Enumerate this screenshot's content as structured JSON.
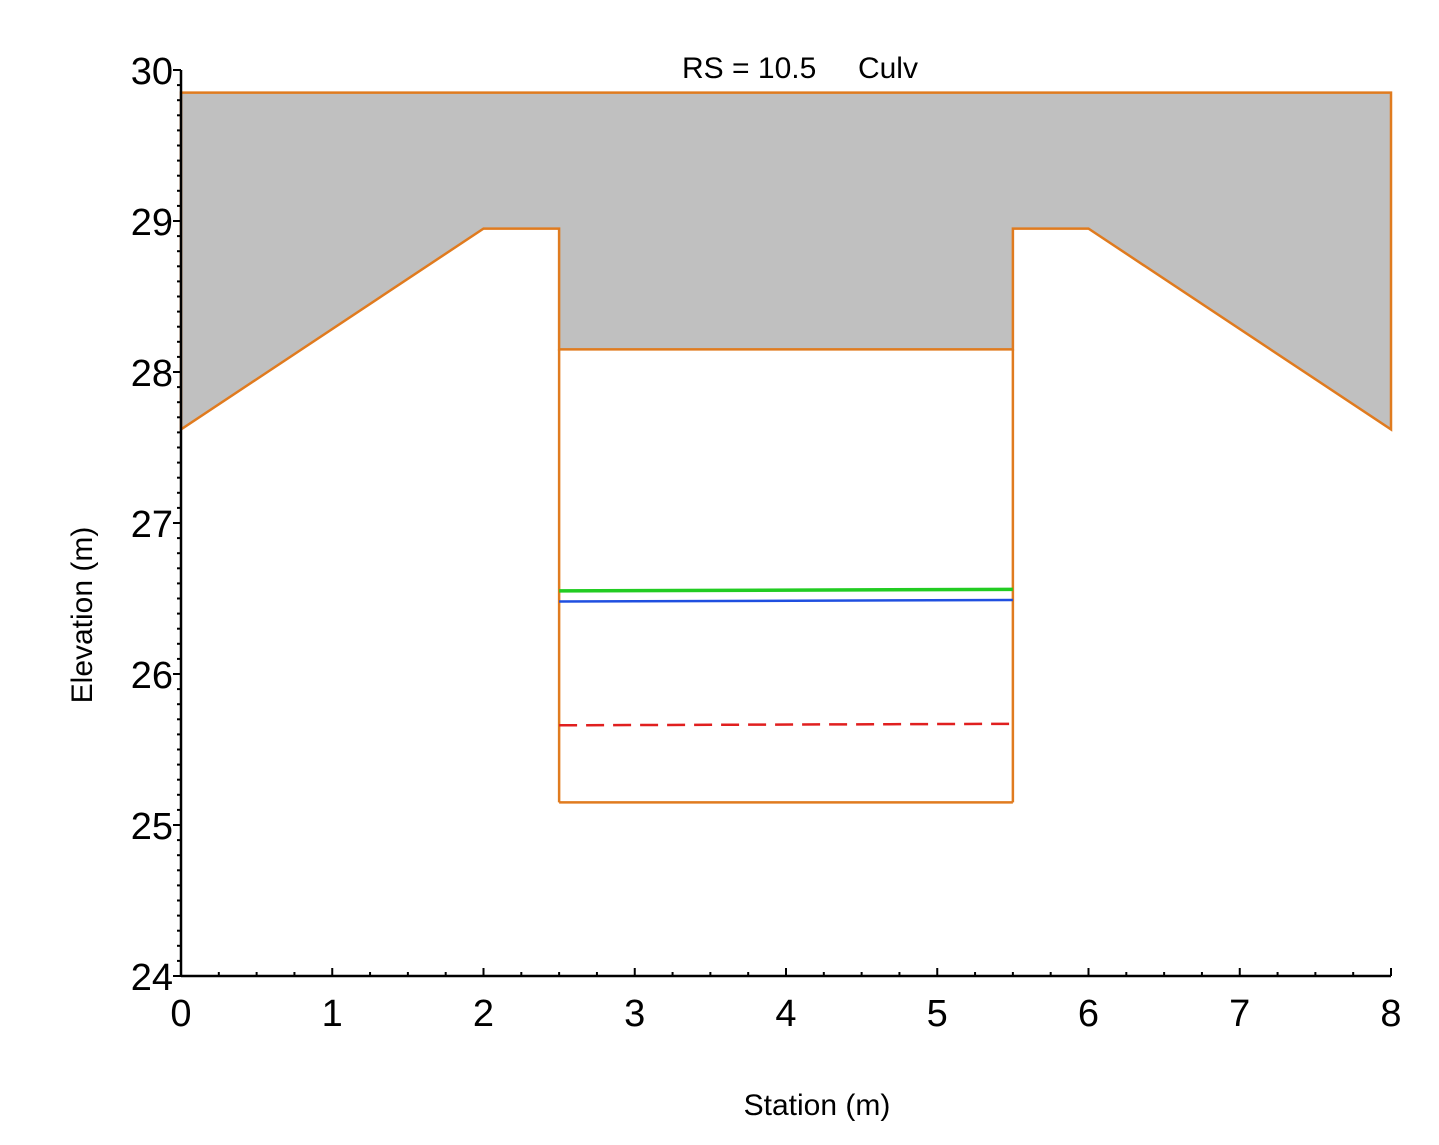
{
  "chart_data": {
    "type": "line",
    "title": "RS = 10.5     Culv",
    "xlabel": "Station (m)",
    "ylabel": "Elevation (m)",
    "xlim": [
      0,
      8
    ],
    "ylim": [
      24,
      30
    ],
    "x_ticks": [
      0,
      1,
      2,
      3,
      4,
      5,
      6,
      7,
      8
    ],
    "y_ticks": [
      24,
      25,
      26,
      27,
      28,
      29,
      30
    ],
    "grid": false,
    "legend": "none",
    "colors": {
      "deck_fill": "#c0c0c0",
      "structure": "#e07b1f",
      "green_line": "#22cc22",
      "blue_line": "#1f4fe0",
      "red_dashed": "#e01f1f"
    },
    "deck": {
      "top": [
        [
          0,
          29.85
        ],
        [
          8,
          29.85
        ]
      ],
      "bottom": [
        [
          0,
          27.62
        ],
        [
          2,
          28.95
        ],
        [
          2.5,
          28.95
        ],
        [
          2.5,
          28.15
        ],
        [
          5.5,
          28.15
        ],
        [
          5.5,
          28.95
        ],
        [
          6,
          28.95
        ],
        [
          8,
          27.62
        ]
      ]
    },
    "culvert": {
      "left": 2.5,
      "right": 5.5,
      "invert": 25.15,
      "soffit": 28.15
    },
    "series": [
      {
        "x": [
          2.5,
          5.5
        ],
        "y": [
          26.55,
          26.56
        ],
        "style": "solid",
        "color": "#22cc22"
      },
      {
        "x": [
          2.5,
          5.5
        ],
        "y": [
          26.48,
          26.49
        ],
        "style": "solid",
        "color": "#1f4fe0"
      },
      {
        "x": [
          2.5,
          5.5
        ],
        "y": [
          25.66,
          25.67
        ],
        "style": "dashed",
        "color": "#e01f1f"
      }
    ]
  }
}
